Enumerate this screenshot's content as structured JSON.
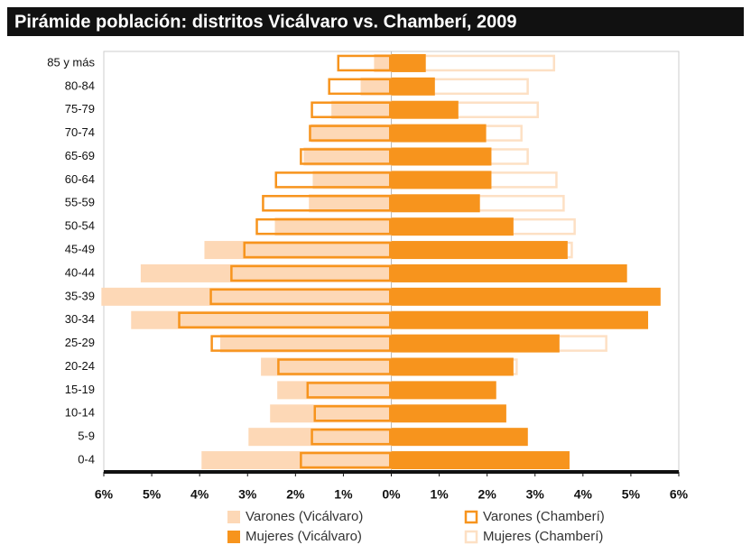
{
  "chart_data": {
    "type": "pyramid",
    "title": "Pirámide población: distritos Vicálvaro vs. Chamberí, 2009",
    "categories": [
      "85 y más",
      "80-84",
      "75-79",
      "70-74",
      "65-69",
      "60-64",
      "55-59",
      "50-54",
      "45-49",
      "40-44",
      "35-39",
      "30-34",
      "25-29",
      "20-24",
      "15-19",
      "10-14",
      "5-9",
      "0-4"
    ],
    "series": [
      {
        "name": "Varones (Vicálvaro)",
        "color": "#fdd8b6",
        "style": "fill",
        "values": [
          -0.36,
          -0.64,
          -1.25,
          -1.68,
          -1.83,
          -1.64,
          -1.72,
          -2.43,
          -3.9,
          -5.23,
          -6.05,
          -5.43,
          -3.57,
          -2.72,
          -2.38,
          -2.53,
          -2.98,
          -3.96
        ]
      },
      {
        "name": "Varones (Chamberí)",
        "color": "#f7941d",
        "style": "outline",
        "values": [
          -1.13,
          -1.32,
          -1.68,
          -1.72,
          -1.91,
          -2.43,
          -2.7,
          -2.83,
          -3.09,
          -3.36,
          -3.79,
          -4.45,
          -3.77,
          -2.38,
          -1.77,
          -1.62,
          -1.68,
          -1.91
        ]
      },
      {
        "name": "Mujeres (Chamberí)",
        "color": "#fde0c4",
        "style": "outline",
        "values": [
          3.42,
          2.87,
          3.08,
          2.74,
          2.87,
          3.47,
          3.62,
          3.85,
          3.79,
          3.85,
          4.08,
          4.74,
          4.51,
          2.64,
          1.66,
          1.55,
          1.58,
          1.83
        ]
      },
      {
        "name": "Mujeres (Vicálvaro)",
        "color": "#f7941d",
        "style": "fill",
        "values": [
          0.72,
          0.91,
          1.4,
          1.98,
          2.09,
          2.09,
          1.85,
          2.55,
          3.68,
          4.92,
          5.62,
          5.36,
          3.51,
          2.55,
          2.19,
          2.4,
          2.85,
          3.72
        ]
      }
    ],
    "xlim": [
      -6,
      6
    ],
    "xticks": [
      {
        "value": -6,
        "label": "6%"
      },
      {
        "value": -5,
        "label": "5%"
      },
      {
        "value": -4,
        "label": "4%"
      },
      {
        "value": -3,
        "label": "3%"
      },
      {
        "value": -2,
        "label": "2%"
      },
      {
        "value": -1,
        "label": "1%"
      },
      {
        "value": 0,
        "label": "0%"
      },
      {
        "value": 1,
        "label": "1%"
      },
      {
        "value": 2,
        "label": "2%"
      },
      {
        "value": 3,
        "label": "3%"
      },
      {
        "value": 4,
        "label": "4%"
      },
      {
        "value": 5,
        "label": "5%"
      },
      {
        "value": 6,
        "label": "6%"
      }
    ]
  }
}
